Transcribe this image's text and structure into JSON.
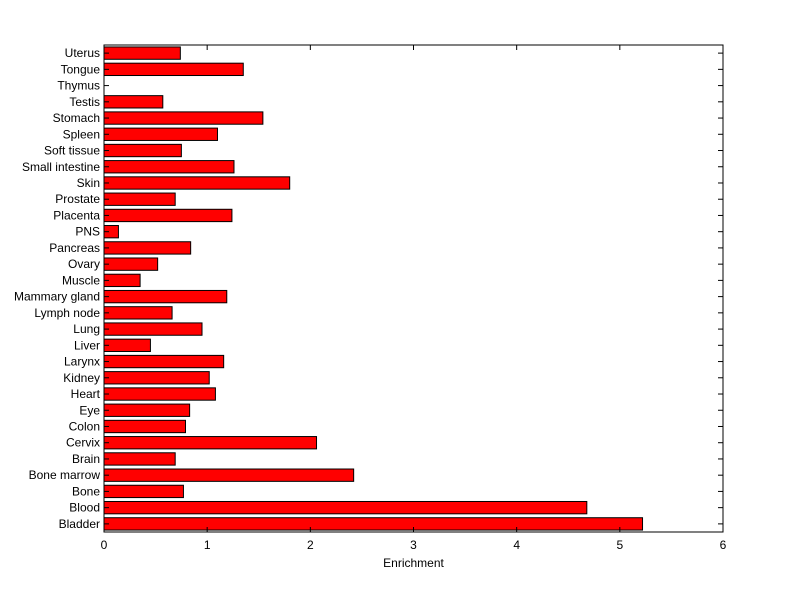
{
  "chart_data": {
    "type": "bar",
    "orientation": "horizontal",
    "title": "",
    "xlabel": "Enrichment",
    "ylabel": "",
    "xlim": [
      0,
      6
    ],
    "xticks": [
      "0",
      "1",
      "2",
      "3",
      "4",
      "5",
      "6"
    ],
    "grid": false,
    "legend": "none",
    "bar_color": "#ff0000",
    "categories": [
      "Bladder",
      "Blood",
      "Bone",
      "Bone marrow",
      "Brain",
      "Cervix",
      "Colon",
      "Eye",
      "Heart",
      "Kidney",
      "Larynx",
      "Liver",
      "Lung",
      "Lymph node",
      "Mammary gland",
      "Muscle",
      "Ovary",
      "Pancreas",
      "PNS",
      "Placenta",
      "Prostate",
      "Skin",
      "Small intestine",
      "Soft tissue",
      "Spleen",
      "Stomach",
      "Testis",
      "Thymus",
      "Tongue",
      "Uterus"
    ],
    "values": [
      5.22,
      4.68,
      0.77,
      2.42,
      0.69,
      2.06,
      0.79,
      0.83,
      1.08,
      1.02,
      1.16,
      0.45,
      0.95,
      0.66,
      1.19,
      0.35,
      0.52,
      0.84,
      0.14,
      1.24,
      0.69,
      1.8,
      1.26,
      0.75,
      1.1,
      1.54,
      0.57,
      0.0,
      1.35,
      0.74
    ]
  }
}
